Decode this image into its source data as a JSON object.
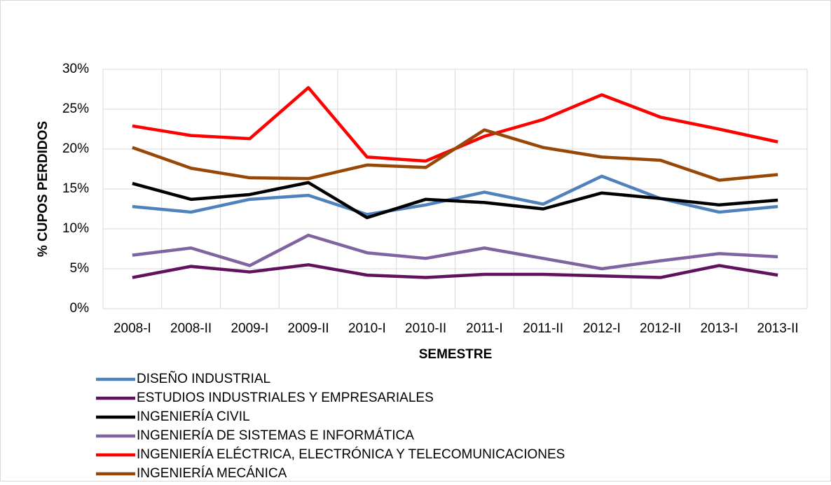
{
  "chart_data": {
    "type": "line",
    "x_label": "SEMESTRE",
    "y_label": "% CUPOS PERDIDOS",
    "categories": [
      "2008-I",
      "2008-II",
      "2009-I",
      "2009-II",
      "2010-I",
      "2010-II",
      "2011-I",
      "2011-II",
      "2012-I",
      "2012-II",
      "2013-I",
      "2013-II"
    ],
    "ylim": [
      0,
      30
    ],
    "yticks": [
      {
        "value": 0,
        "label": "0%"
      },
      {
        "value": 5,
        "label": "5%"
      },
      {
        "value": 10,
        "label": "10%"
      },
      {
        "value": 15,
        "label": "15%"
      },
      {
        "value": 20,
        "label": "20%"
      },
      {
        "value": 25,
        "label": "25%"
      },
      {
        "value": 30,
        "label": "30%"
      }
    ],
    "grid": true,
    "legend": "bottom",
    "series": [
      {
        "name": "DISEÑO INDUSTRIAL",
        "color": "#4f81bd",
        "values": [
          12.8,
          12.1,
          13.7,
          14.2,
          11.8,
          13.0,
          14.6,
          13.1,
          16.6,
          13.8,
          12.1,
          12.8
        ]
      },
      {
        "name": "ESTUDIOS INDUSTRIALES Y EMPRESARIALES",
        "color": "#60125e",
        "values": [
          3.9,
          5.3,
          4.6,
          5.5,
          4.2,
          3.9,
          4.3,
          4.3,
          4.1,
          3.9,
          5.4,
          4.2
        ]
      },
      {
        "name": "INGENIERÍA CIVIL",
        "color": "#000000",
        "values": [
          15.7,
          13.7,
          14.3,
          15.8,
          11.4,
          13.7,
          13.3,
          12.5,
          14.5,
          13.8,
          13.0,
          13.6
        ]
      },
      {
        "name": "INGENIERÍA DE SISTEMAS E INFORMÁTICA",
        "color": "#8064a2",
        "values": [
          6.7,
          7.6,
          5.4,
          9.2,
          7.0,
          6.3,
          7.6,
          6.3,
          5.0,
          6.0,
          6.9,
          6.5
        ]
      },
      {
        "name": "INGENIERÍA ELÉCTRICA, ELECTRÓNICA Y TELECOMUNICACIONES",
        "color": "#ff0000",
        "values": [
          22.9,
          21.7,
          21.3,
          27.7,
          19.0,
          18.5,
          21.6,
          23.7,
          26.8,
          24.0,
          22.5,
          20.9
        ]
      },
      {
        "name": "INGENIERÍA MECÁNICA",
        "color": "#974706",
        "values": [
          20.2,
          17.6,
          16.4,
          16.3,
          18.0,
          17.7,
          22.4,
          20.2,
          19.0,
          18.6,
          16.1,
          16.8
        ]
      }
    ]
  }
}
